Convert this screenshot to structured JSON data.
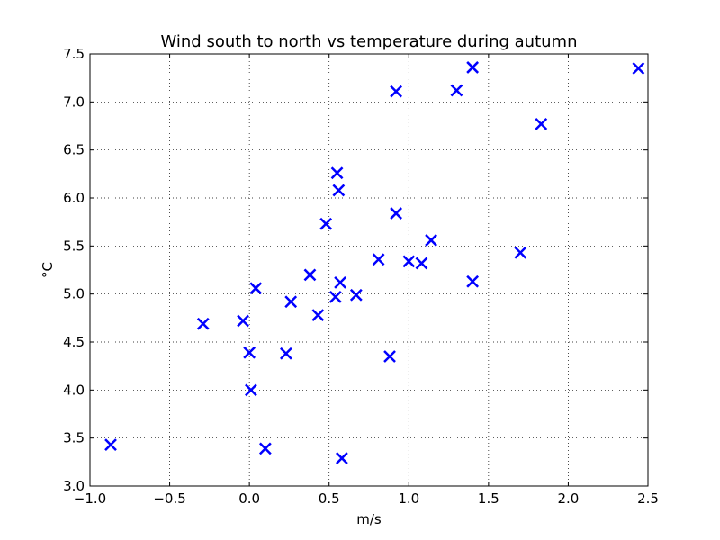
{
  "chart_data": {
    "type": "scatter",
    "title": "Wind south to north vs temperature during autumn",
    "xlabel": "m/s",
    "ylabel": "°C",
    "xlim": [
      -1.0,
      2.5
    ],
    "ylim": [
      3.0,
      7.5
    ],
    "xticks": [
      -1.0,
      -0.5,
      0.0,
      0.5,
      1.0,
      1.5,
      2.0,
      2.5
    ],
    "xtick_labels": [
      "−1.0",
      "−0.5",
      "0.0",
      "0.5",
      "1.0",
      "1.5",
      "2.0",
      "2.5"
    ],
    "yticks": [
      3.0,
      3.5,
      4.0,
      4.5,
      5.0,
      5.5,
      6.0,
      6.5,
      7.0,
      7.5
    ],
    "ytick_labels": [
      "3.0",
      "3.5",
      "4.0",
      "4.5",
      "5.0",
      "5.5",
      "6.0",
      "6.5",
      "7.0",
      "7.5"
    ],
    "grid": true,
    "marker": "x",
    "marker_color": "#0000ff",
    "series": [
      {
        "points": [
          [
            -0.87,
            3.43
          ],
          [
            -0.29,
            4.69
          ],
          [
            -0.04,
            4.72
          ],
          [
            0.0,
            4.39
          ],
          [
            0.01,
            4.0
          ],
          [
            0.04,
            5.06
          ],
          [
            0.1,
            3.39
          ],
          [
            0.23,
            4.38
          ],
          [
            0.26,
            4.92
          ],
          [
            0.38,
            5.2
          ],
          [
            0.43,
            4.78
          ],
          [
            0.48,
            5.73
          ],
          [
            0.54,
            4.97
          ],
          [
            0.55,
            6.26
          ],
          [
            0.56,
            6.08
          ],
          [
            0.57,
            5.12
          ],
          [
            0.58,
            3.29
          ],
          [
            0.67,
            4.99
          ],
          [
            0.81,
            5.36
          ],
          [
            0.88,
            4.35
          ],
          [
            0.92,
            7.11
          ],
          [
            0.92,
            5.84
          ],
          [
            1.0,
            5.34
          ],
          [
            1.08,
            5.32
          ],
          [
            1.14,
            5.56
          ],
          [
            1.3,
            7.12
          ],
          [
            1.4,
            7.36
          ],
          [
            1.4,
            5.13
          ],
          [
            1.7,
            5.43
          ],
          [
            1.83,
            6.77
          ],
          [
            2.44,
            7.35
          ]
        ]
      }
    ]
  }
}
